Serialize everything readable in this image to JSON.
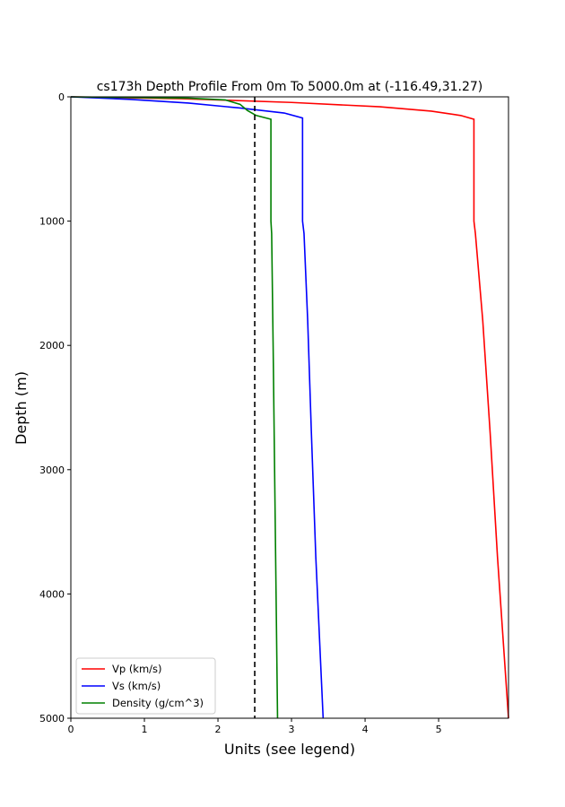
{
  "chart_data": {
    "type": "line",
    "title": "cs173h Depth Profile From 0m To 5000.0m at (-116.49,31.27)",
    "xlabel": "Units (see legend)",
    "ylabel": "Depth (m)",
    "xlim": [
      0,
      5.95
    ],
    "ylim": [
      0,
      5000
    ],
    "y_inverted": true,
    "x_ticks": [
      0,
      1,
      2,
      3,
      4,
      5
    ],
    "y_ticks": [
      0,
      1000,
      2000,
      3000,
      4000,
      5000
    ],
    "grid": false,
    "legend_position": "lower-left",
    "reference_line": {
      "x": 2.5,
      "style": "dashed",
      "color": "#000000"
    },
    "series": [
      {
        "name": "Vp (km/s)",
        "color": "#ff0000",
        "points": [
          [
            0.0,
            0
          ],
          [
            1.5,
            15
          ],
          [
            3.0,
            45
          ],
          [
            4.2,
            80
          ],
          [
            4.9,
            115
          ],
          [
            5.3,
            150
          ],
          [
            5.48,
            180
          ],
          [
            5.48,
            500
          ],
          [
            5.48,
            1000
          ],
          [
            5.5,
            1100
          ],
          [
            5.6,
            1800
          ],
          [
            5.7,
            2700
          ],
          [
            5.8,
            3700
          ],
          [
            5.95,
            5000
          ]
        ]
      },
      {
        "name": "Vs (km/s)",
        "color": "#0000ff",
        "points": [
          [
            0.0,
            0
          ],
          [
            0.8,
            20
          ],
          [
            1.6,
            50
          ],
          [
            2.3,
            90
          ],
          [
            2.9,
            130
          ],
          [
            3.15,
            170
          ],
          [
            3.15,
            500
          ],
          [
            3.15,
            1000
          ],
          [
            3.17,
            1100
          ],
          [
            3.22,
            1800
          ],
          [
            3.27,
            2700
          ],
          [
            3.33,
            3700
          ],
          [
            3.43,
            5000
          ]
        ]
      },
      {
        "name": "Density (g/cm^3)",
        "color": "#008000",
        "points": [
          [
            0.0,
            0
          ],
          [
            1.6,
            10
          ],
          [
            2.1,
            25
          ],
          [
            2.3,
            60
          ],
          [
            2.4,
            110
          ],
          [
            2.52,
            150
          ],
          [
            2.72,
            180
          ],
          [
            2.72,
            500
          ],
          [
            2.72,
            1000
          ],
          [
            2.73,
            1100
          ],
          [
            2.75,
            2000
          ],
          [
            2.77,
            3000
          ],
          [
            2.79,
            4000
          ],
          [
            2.81,
            5000
          ]
        ]
      }
    ]
  }
}
